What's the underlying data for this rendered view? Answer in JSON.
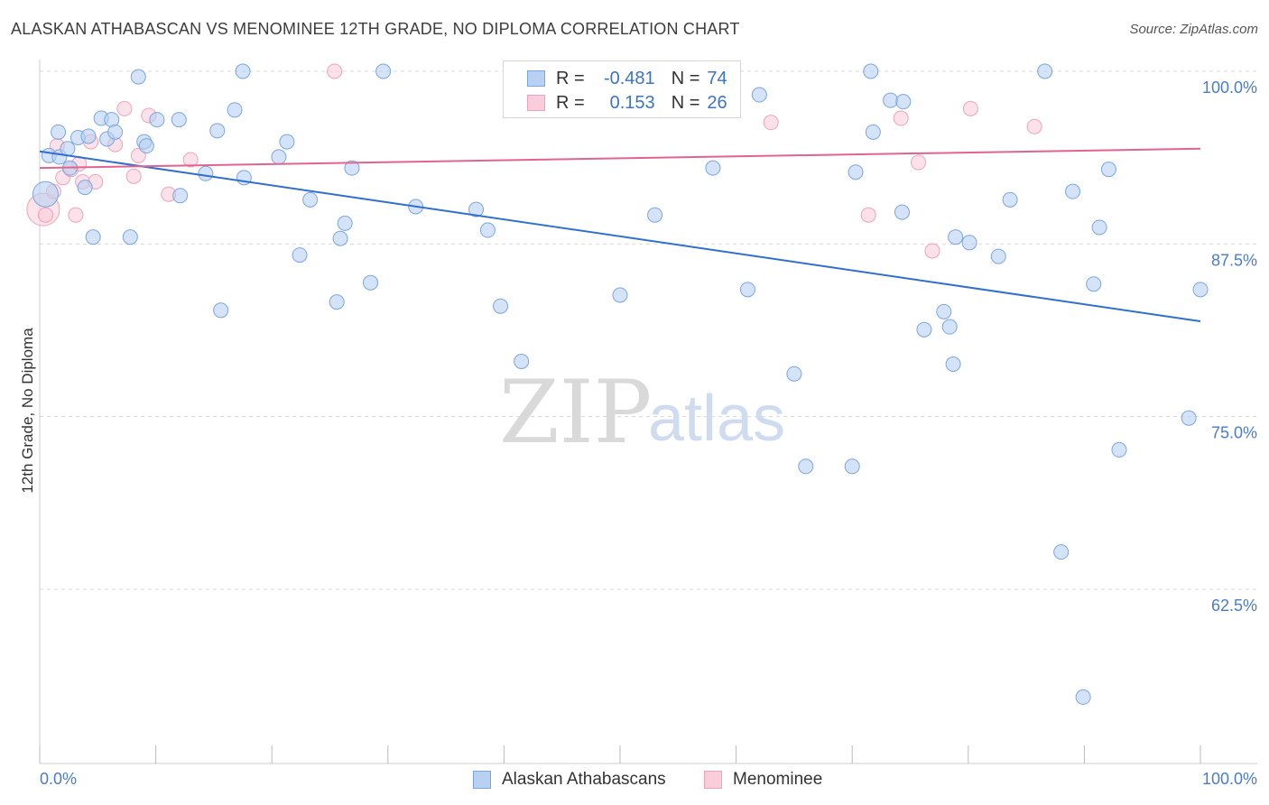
{
  "title": "ALASKAN ATHABASCAN VS MENOMINEE 12TH GRADE, NO DIPLOMA CORRELATION CHART",
  "source": "Source: ZipAtlas.com",
  "legend": {
    "row1": {
      "r_label": "R =",
      "r_value": "-0.481",
      "n_label": "N =",
      "n_value": "74"
    },
    "row2": {
      "r_label": "R =",
      "r_value": "0.153",
      "n_label": "N =",
      "n_value": "26"
    }
  },
  "watermark": {
    "zip": "ZIP",
    "atlas": "atlas"
  },
  "colors": {
    "blue_fill": "#b8d0f2",
    "blue_stroke": "#7aa6e0",
    "blue_line": "#2f6fcf",
    "pink_fill": "#f9cdda",
    "pink_stroke": "#eea3bb",
    "pink_line": "#e0648f",
    "grid": "#d9d9d9",
    "tick_text": "#4a7bd0"
  },
  "chart_data": {
    "type": "scatter",
    "title": "ALASKAN ATHABASCAN VS MENOMINEE 12TH GRADE, NO DIPLOMA CORRELATION CHART",
    "xlabel": "",
    "ylabel": "12th Grade, No Diploma",
    "xlim": [
      0,
      100
    ],
    "ylim": [
      51.5,
      101
    ],
    "x_tick_labels": [
      "0.0%",
      "100.0%"
    ],
    "y_ticks": [
      100,
      87.5,
      75,
      62.5
    ],
    "y_tick_labels": [
      "100.0%",
      "87.5%",
      "75.0%",
      "62.5%"
    ],
    "grid": true,
    "legend_placement": "top-center",
    "series": [
      {
        "name": "Alaskan Athabascans",
        "color": "#b8d0f2",
        "trend": {
          "x": [
            0,
            100
          ],
          "y": [
            94.2,
            81.9
          ]
        },
        "points": [
          [
            0.5,
            91.1
          ],
          [
            0.8,
            93.9
          ],
          [
            1.6,
            95.6
          ],
          [
            1.7,
            93.8
          ],
          [
            2.4,
            94.4
          ],
          [
            2.6,
            93.0
          ],
          [
            3.3,
            95.2
          ],
          [
            3.9,
            91.6
          ],
          [
            4.2,
            95.3
          ],
          [
            4.6,
            88.0
          ],
          [
            5.3,
            96.6
          ],
          [
            5.8,
            95.1
          ],
          [
            6.2,
            96.5
          ],
          [
            6.5,
            95.6
          ],
          [
            7.8,
            88.0
          ],
          [
            8.5,
            99.6
          ],
          [
            9.0,
            94.9
          ],
          [
            9.2,
            94.6
          ],
          [
            10.1,
            96.5
          ],
          [
            12.0,
            96.5
          ],
          [
            12.1,
            91.0
          ],
          [
            14.3,
            92.6
          ],
          [
            15.3,
            95.7
          ],
          [
            15.6,
            82.7
          ],
          [
            16.8,
            97.2
          ],
          [
            17.6,
            92.3
          ],
          [
            17.5,
            100.0
          ],
          [
            20.6,
            93.8
          ],
          [
            21.3,
            94.9
          ],
          [
            22.4,
            86.7
          ],
          [
            23.3,
            90.7
          ],
          [
            25.6,
            83.3
          ],
          [
            25.9,
            87.9
          ],
          [
            26.3,
            89.0
          ],
          [
            26.9,
            93.0
          ],
          [
            28.5,
            84.7
          ],
          [
            29.6,
            100.0
          ],
          [
            32.4,
            90.2
          ],
          [
            37.6,
            90.0
          ],
          [
            38.6,
            88.5
          ],
          [
            39.7,
            83.0
          ],
          [
            41.5,
            79.0
          ],
          [
            50.0,
            83.8
          ],
          [
            53.0,
            89.6
          ],
          [
            58.0,
            93.0
          ],
          [
            61.0,
            84.2
          ],
          [
            62.0,
            98.3
          ],
          [
            65.0,
            78.1
          ],
          [
            66.0,
            71.4
          ],
          [
            70.0,
            71.4
          ],
          [
            70.3,
            92.7
          ],
          [
            71.6,
            100.0
          ],
          [
            71.8,
            95.6
          ],
          [
            73.3,
            97.9
          ],
          [
            74.3,
            89.8
          ],
          [
            74.4,
            97.8
          ],
          [
            76.2,
            81.3
          ],
          [
            77.9,
            82.6
          ],
          [
            78.4,
            81.5
          ],
          [
            78.7,
            78.8
          ],
          [
            78.9,
            88.0
          ],
          [
            80.1,
            87.6
          ],
          [
            82.6,
            86.6
          ],
          [
            83.6,
            90.7
          ],
          [
            86.6,
            100.0
          ],
          [
            88.0,
            65.2
          ],
          [
            89.0,
            91.3
          ],
          [
            89.9,
            54.7
          ],
          [
            90.8,
            84.6
          ],
          [
            91.3,
            88.7
          ],
          [
            92.1,
            92.9
          ],
          [
            93.0,
            72.6
          ],
          [
            99.0,
            74.9
          ],
          [
            100.0,
            84.2
          ]
        ]
      },
      {
        "name": "Menominee",
        "color": "#f9cdda",
        "trend": {
          "x": [
            0,
            100
          ],
          "y": [
            93.0,
            94.4
          ]
        },
        "points": [
          [
            0.3,
            90.0
          ],
          [
            0.5,
            89.6
          ],
          [
            1.2,
            91.3
          ],
          [
            1.5,
            94.6
          ],
          [
            2.0,
            92.3
          ],
          [
            2.7,
            92.9
          ],
          [
            3.1,
            89.6
          ],
          [
            3.4,
            93.3
          ],
          [
            3.7,
            92.0
          ],
          [
            4.4,
            94.9
          ],
          [
            4.8,
            92.0
          ],
          [
            6.5,
            94.7
          ],
          [
            7.3,
            97.3
          ],
          [
            8.1,
            92.4
          ],
          [
            8.5,
            93.9
          ],
          [
            9.4,
            96.8
          ],
          [
            11.1,
            91.1
          ],
          [
            13.0,
            93.6
          ],
          [
            25.4,
            100.0
          ],
          [
            63.0,
            96.3
          ],
          [
            71.4,
            89.6
          ],
          [
            74.2,
            96.6
          ],
          [
            75.7,
            93.4
          ],
          [
            76.9,
            87.0
          ],
          [
            80.2,
            97.3
          ],
          [
            85.7,
            96.0
          ]
        ]
      }
    ]
  },
  "bottom_legend": {
    "series1": "Alaskan Athabascans",
    "series2": "Menominee"
  }
}
